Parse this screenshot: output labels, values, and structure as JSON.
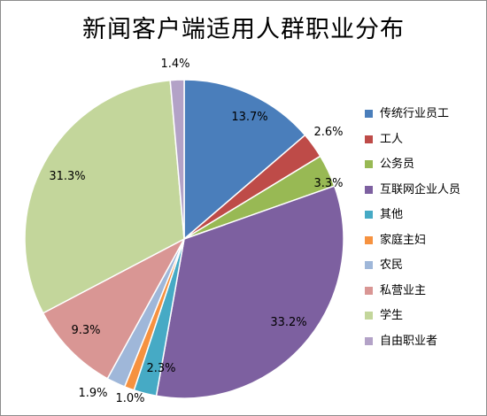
{
  "chart_data": {
    "type": "pie",
    "title": "新闻客户端适用人群职业分布",
    "legend_position": "right",
    "start_angle_deg": 0,
    "direction": "clockwise",
    "slices": [
      {
        "label": "传统行业员工",
        "value": 13.7,
        "display": "13.7%",
        "color": "#4a7ebb"
      },
      {
        "label": "工人",
        "value": 2.6,
        "display": "2.6%",
        "color": "#be4b48"
      },
      {
        "label": "公务员",
        "value": 3.3,
        "display": "3.3%",
        "color": "#98b954"
      },
      {
        "label": "互联网企业人员",
        "value": 33.2,
        "display": "33.2%",
        "color": "#7d60a0"
      },
      {
        "label": "其他",
        "value": 2.3,
        "display": "2.3%",
        "color": "#46aac5"
      },
      {
        "label": "家庭主妇",
        "value": 1.0,
        "display": "1.0%",
        "color": "#f69240"
      },
      {
        "label": "农民",
        "value": 1.9,
        "display": "1.9%",
        "color": "#9fb7d9"
      },
      {
        "label": "私营业主",
        "value": 9.3,
        "display": "9.3%",
        "color": "#d99694"
      },
      {
        "label": "学生",
        "value": 31.3,
        "display": "31.3%",
        "color": "#c3d69b"
      },
      {
        "label": "自由职业者",
        "value": 1.4,
        "display": "1.4%",
        "color": "#b3a2c7"
      }
    ]
  }
}
